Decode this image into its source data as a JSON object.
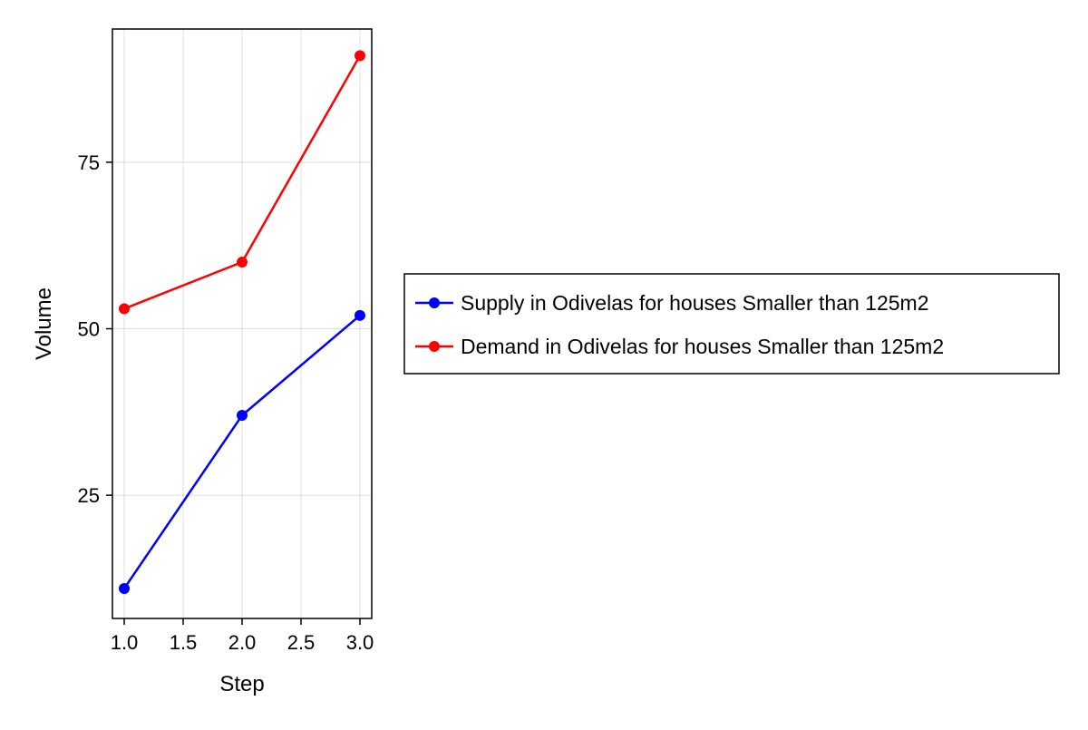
{
  "chart_data": {
    "type": "line",
    "title": "",
    "xlabel": "Step",
    "ylabel": "Volume",
    "xlim": [
      0.9,
      3.1
    ],
    "ylim": [
      6.5,
      95
    ],
    "x_ticks": [
      1.0,
      1.5,
      2.0,
      2.5,
      3.0
    ],
    "x_tick_labels": [
      "1.0",
      "1.5",
      "2.0",
      "2.5",
      "3.0"
    ],
    "y_ticks": [
      25,
      50,
      75
    ],
    "y_tick_labels": [
      "25",
      "50",
      "75"
    ],
    "grid": true,
    "legend_position": "right",
    "x": [
      1,
      2,
      3
    ],
    "series": [
      {
        "name": "Supply in Odivelas for houses Smaller than 125m2",
        "values": [
          11,
          37,
          52
        ],
        "color": "#0000ff"
      },
      {
        "name": "Demand in Odivelas for houses Smaller than 125m2",
        "values": [
          53,
          60,
          91
        ],
        "color": "#ff0000"
      }
    ]
  }
}
